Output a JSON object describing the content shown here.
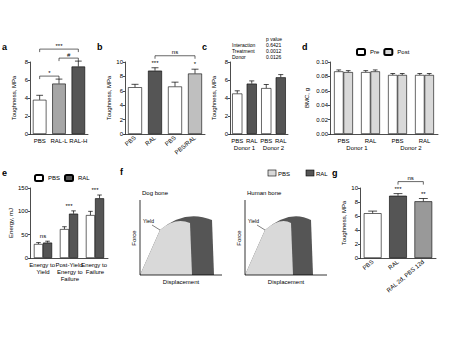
{
  "chart_data": [
    {
      "type": "bar",
      "title": "a",
      "y_label": "Toughness, MPa",
      "categories": [
        "PBS",
        "RAL-L",
        "RAL-H"
      ],
      "values": [
        3.8,
        5.6,
        7.5
      ],
      "errors": [
        0.5,
        0.5,
        0.6
      ],
      "colors": [
        "#ffffff",
        "#a6a6a6",
        "#555555"
      ],
      "ylim": [
        0,
        8
      ],
      "yticks": [
        0,
        2,
        4,
        6,
        8
      ],
      "grid": false,
      "annotations": [
        {
          "text": "*",
          "bars": [
            0,
            1
          ]
        },
        {
          "text": "#",
          "bars": [
            1,
            2
          ]
        },
        {
          "text": "***",
          "bars": [
            0,
            2
          ]
        }
      ]
    },
    {
      "type": "bar",
      "title": "b",
      "y_label": "Toughness, MPa",
      "categories": [
        "PBS",
        "RAL",
        "PBS",
        "PBS/RAL"
      ],
      "values": [
        6.5,
        8.8,
        6.6,
        8.4
      ],
      "errors": [
        0.4,
        0.4,
        0.6,
        0.6
      ],
      "colors": [
        "#ffffff",
        "#555555",
        "#ffffff",
        "#bfbfbf"
      ],
      "ylim": [
        0,
        10
      ],
      "yticks": [
        0,
        2,
        4,
        6,
        8,
        10
      ],
      "grid": false,
      "annotations": [
        {
          "text": "***",
          "bars": [
            1,
            1
          ]
        },
        {
          "text": "*",
          "bars": [
            3,
            3
          ]
        },
        {
          "text": "ns",
          "bars": [
            1,
            3
          ]
        }
      ]
    },
    {
      "type": "bar",
      "title": "c",
      "y_label": "Toughness, MPa",
      "categories": [
        "PBS",
        "RAL",
        "PBS",
        "RAL"
      ],
      "group_labels": [
        "Donor 1",
        "Donor 2"
      ],
      "values": [
        4.5,
        5.6,
        5.1,
        6.3
      ],
      "errors": [
        0.3,
        0.3,
        0.4,
        0.3
      ],
      "colors": [
        "#ffffff",
        "#555555",
        "#ffffff",
        "#555555"
      ],
      "ylim": [
        0,
        8
      ],
      "yticks": [
        0,
        2,
        4,
        6,
        8
      ],
      "grid": false,
      "stats_table": {
        "column": "p value",
        "rows": [
          [
            "Interaction",
            "0.6421"
          ],
          [
            "Treatment",
            "0.0012"
          ],
          [
            "Donor",
            "0.0126"
          ]
        ]
      }
    },
    {
      "type": "bar",
      "title": "d",
      "y_label": "BMC, g",
      "categories": [
        "PBS",
        "RAL",
        "PBS",
        "RAL"
      ],
      "group_labels": [
        "Donor 1",
        "Donor 2"
      ],
      "series": [
        {
          "name": "Pre",
          "color": "#ffffff",
          "values": [
            0.087,
            0.086,
            0.082,
            0.082
          ],
          "errors": [
            0.002,
            0.002,
            0.002,
            0.002
          ]
        },
        {
          "name": "Post",
          "color": "#d9d9d9",
          "values": [
            0.086,
            0.087,
            0.082,
            0.082
          ],
          "errors": [
            0.002,
            0.002,
            0.002,
            0.002
          ]
        }
      ],
      "ylim": [
        0,
        0.1
      ],
      "yticks": [
        {
          "value": 0,
          "label": "0.00"
        },
        {
          "value": 0.02,
          "label": "0.02"
        },
        {
          "value": 0.04,
          "label": "0.04"
        },
        {
          "value": 0.06,
          "label": "0.06"
        },
        {
          "value": 0.08,
          "label": "0.08"
        },
        {
          "value": 0.1,
          "label": "0.10"
        }
      ],
      "grid": false,
      "legend": "top"
    },
    {
      "type": "bar",
      "title": "e",
      "y_label": "Energy, mJ",
      "categories": [
        "Energy to Yield",
        "Post-Yield Energy to Failure",
        "Energy to Failure"
      ],
      "series": [
        {
          "name": "PBS",
          "color": "#ffffff",
          "values": [
            30,
            62,
            92
          ],
          "errors": [
            3,
            5,
            8
          ]
        },
        {
          "name": "RAL",
          "color": "#555555",
          "values": [
            33,
            95,
            128
          ],
          "errors": [
            3,
            6,
            7
          ]
        }
      ],
      "ylim": [
        0,
        150
      ],
      "yticks": [
        0,
        50,
        100,
        150
      ],
      "grid": false,
      "legend": "top-left",
      "annotations": [
        {
          "text": "ns",
          "bars": [
            0,
            0
          ]
        },
        {
          "text": "***",
          "bars": [
            1,
            1
          ]
        },
        {
          "text": "***",
          "bars": [
            2,
            2
          ]
        }
      ]
    },
    {
      "type": "bar",
      "title": "g",
      "y_label": "Toughness, MPa",
      "categories": [
        "PBS",
        "RAL",
        "RAL 2d, PBS 12d"
      ],
      "values": [
        6.4,
        8.9,
        8.1
      ],
      "errors": [
        0.3,
        0.3,
        0.4
      ],
      "colors": [
        "#ffffff",
        "#555555",
        "#999999"
      ],
      "ylim": [
        0,
        10
      ],
      "yticks": [
        0,
        2,
        4,
        6,
        8,
        10
      ],
      "grid": false,
      "annotations": [
        {
          "text": "***",
          "bars": [
            1,
            1
          ]
        },
        {
          "text": "**",
          "bars": [
            2,
            2
          ]
        },
        {
          "text": "ns",
          "bars": [
            1,
            2
          ]
        }
      ]
    }
  ],
  "diagram": {
    "title": "f",
    "panels": [
      {
        "title": "Dog bone"
      },
      {
        "title": "Human bone"
      }
    ],
    "x_label": "Displacement",
    "y_label": "Force",
    "annotation": "Yield",
    "legend": [
      {
        "name": "PBS",
        "color": "#d9d9d9"
      },
      {
        "name": "RAL",
        "color": "#555555"
      }
    ]
  }
}
